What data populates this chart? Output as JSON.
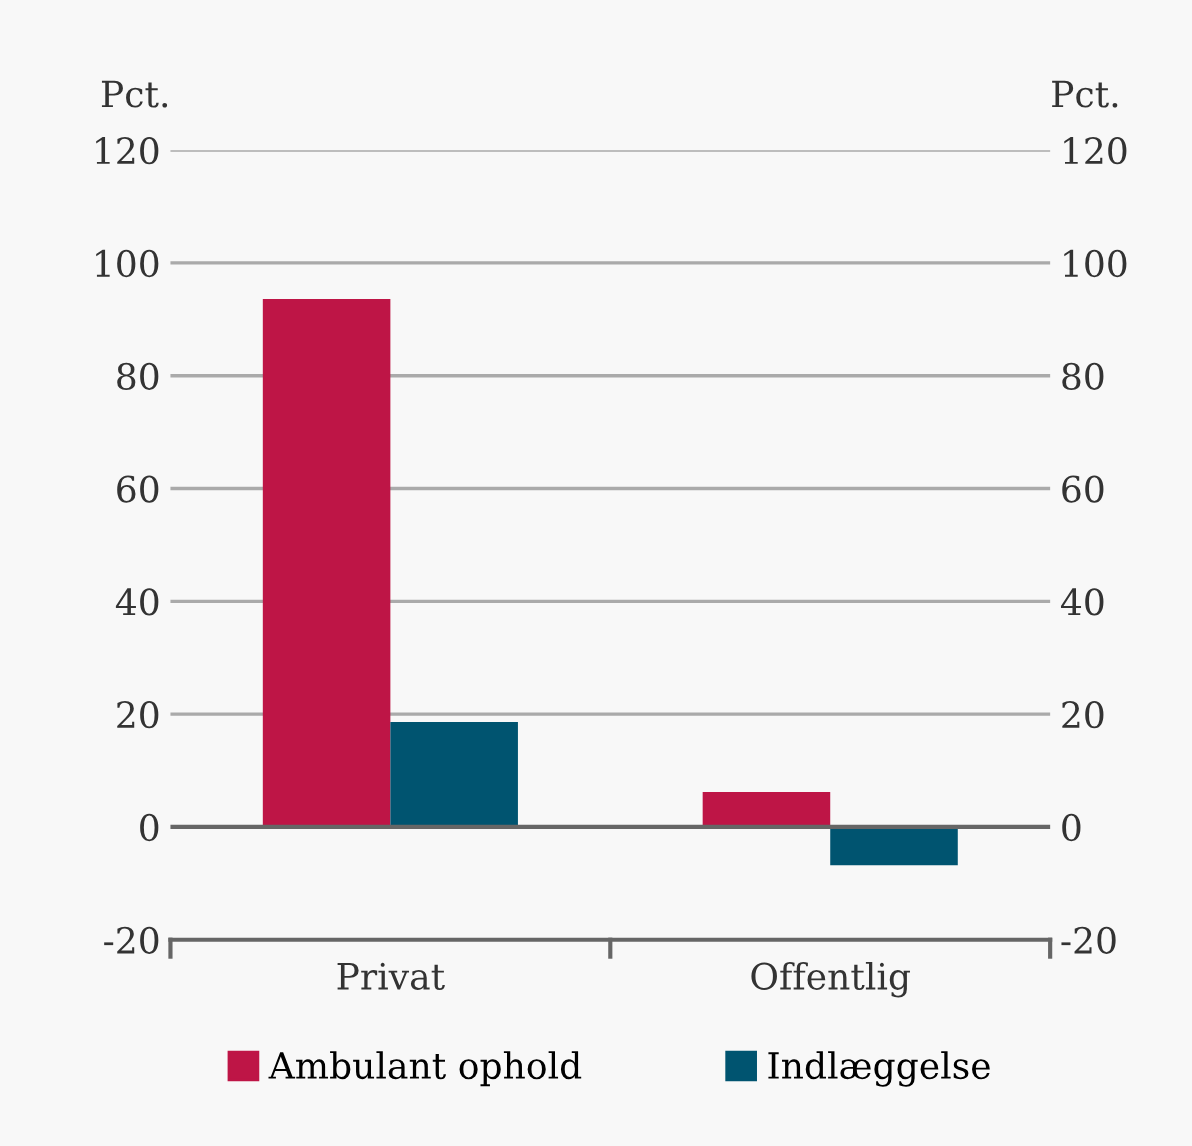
{
  "chart_data": {
    "type": "bar",
    "ylabel": "Pct.",
    "y2label": "Pct.",
    "categories": [
      "Privat",
      "Offentlig"
    ],
    "series": [
      {
        "name": "Ambulant ophold",
        "color": "#be1546",
        "values": [
          93.6,
          6.2
        ]
      },
      {
        "name": "Indlæggelse",
        "color": "#005470",
        "values": [
          18.6,
          -6.8
        ]
      }
    ],
    "ylim": [
      -20,
      120
    ],
    "yticks": [
      -20,
      0,
      20,
      40,
      60,
      80,
      100,
      120
    ],
    "y2lim": [
      -20,
      120
    ],
    "y2ticks": [
      -20,
      0,
      20,
      40,
      60,
      80,
      100,
      120
    ],
    "grid": "y",
    "legend": "bottom"
  }
}
